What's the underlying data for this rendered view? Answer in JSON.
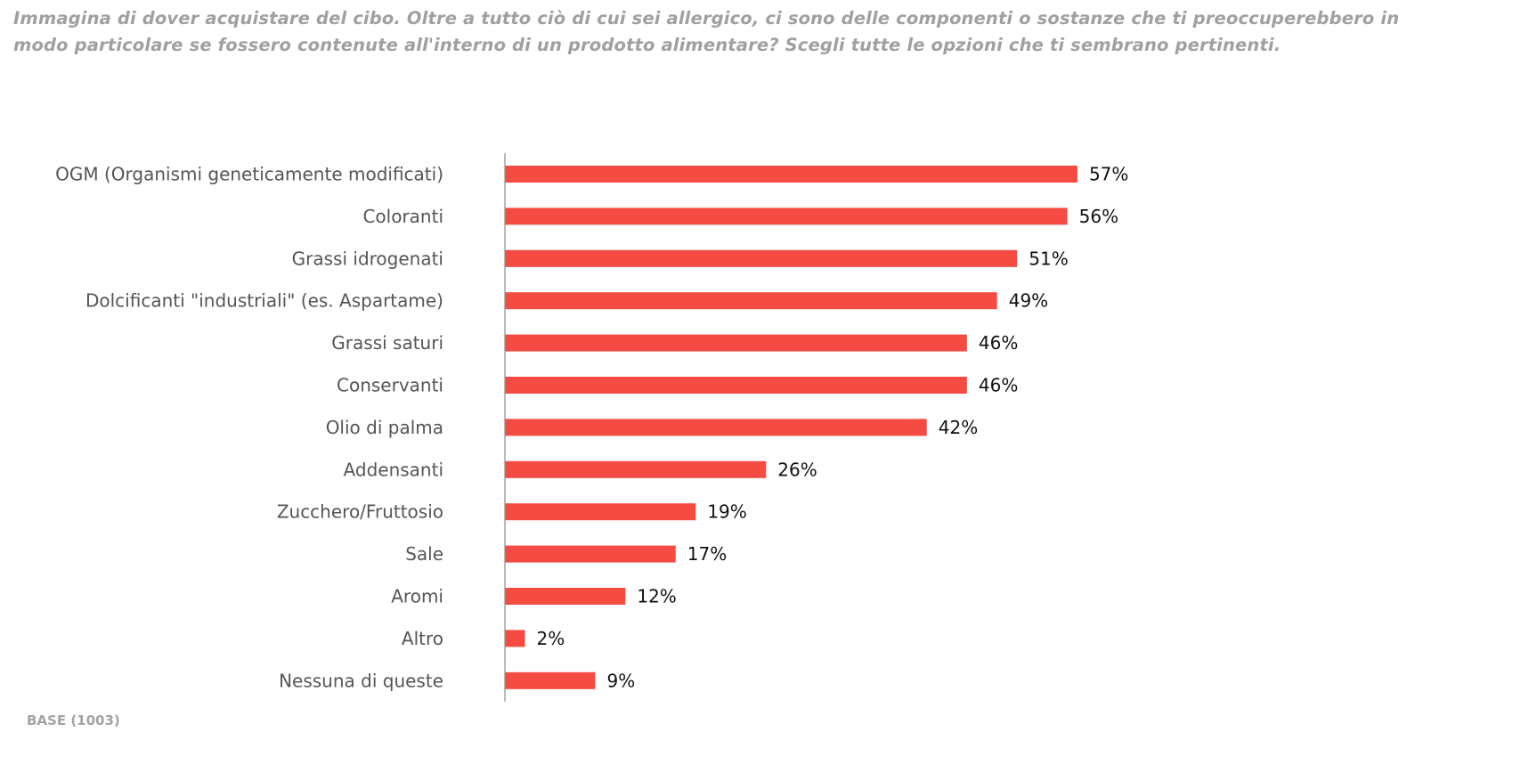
{
  "question": {
    "line1": "Immagina di dover acquistare del cibo. Oltre a tutto ciò di cui sei allergico, ci sono delle componenti o sostanze che ti preoccuperebbero in",
    "line2": "modo particolare se fossero contenute all'interno di un prodotto alimentare? Scegli tutte le opzioni che ti sembrano pertinenti."
  },
  "base_note": "BASE (1003)",
  "colors": {
    "bar": "#F44B42",
    "axis": "#8C8C8C",
    "category_text": "#555555",
    "value_text": "#111111",
    "question_text": "#A0A0A0"
  },
  "chart_data": {
    "type": "bar",
    "orientation": "horizontal",
    "title": "Immagina di dover acquistare del cibo. Oltre a tutto ciò di cui sei allergico, ci sono delle componenti o sostanze che ti preoccuperebbero in modo particolare se fossero contenute all'interno di un prodotto alimentare? Scegli tutte le opzioni che ti sembrano pertinenti.",
    "xlabel": "",
    "ylabel": "",
    "unit": "%",
    "xlim": [
      0,
      100
    ],
    "grid": false,
    "legend": "none",
    "categories": [
      "OGM (Organismi geneticamente modificati)",
      "Coloranti",
      "Grassi idrogenati",
      "Dolcificanti \"industriali\" (es. Aspartame)",
      "Grassi saturi",
      "Conservanti",
      "Olio di palma",
      "Addensanti",
      "Zucchero/Fruttosio",
      "Sale",
      "Aromi",
      "Altro",
      "Nessuna di queste"
    ],
    "values": [
      57,
      56,
      51,
      49,
      46,
      46,
      42,
      26,
      19,
      17,
      12,
      2,
      9
    ],
    "value_labels": [
      "57%",
      "56%",
      "51%",
      "49%",
      "46%",
      "46%",
      "42%",
      "26%",
      "19%",
      "17%",
      "12%",
      "2%",
      "9%"
    ],
    "annotation": "BASE (1003)"
  }
}
